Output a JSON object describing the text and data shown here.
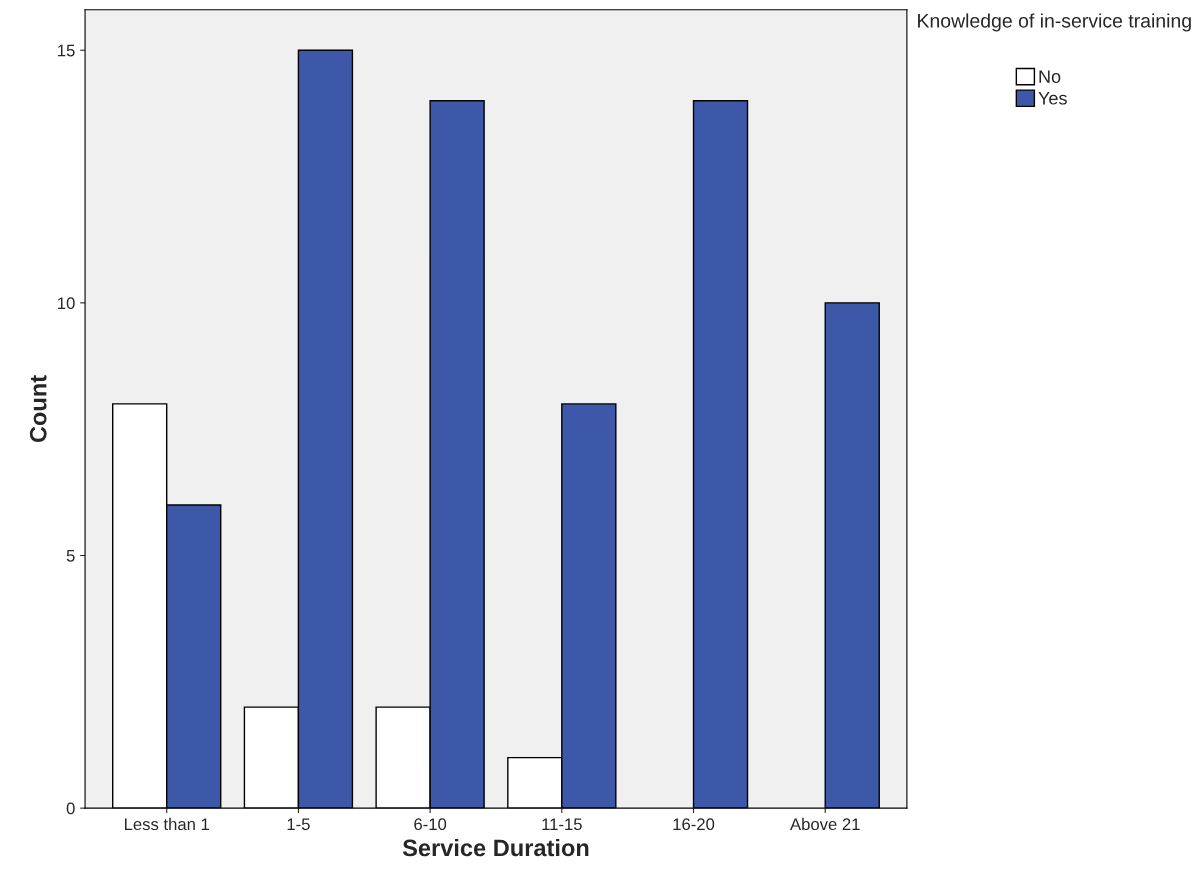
{
  "chart_data": {
    "type": "bar",
    "xlabel": "Service Duration",
    "ylabel": "Count",
    "legend_title": "Knowledge of in-service training",
    "categories": [
      "Less than 1",
      "1-5",
      "6-10",
      "11-15",
      "16-20",
      "Above 21"
    ],
    "series": [
      {
        "name": "No",
        "color": "#ffffff",
        "values": [
          8,
          2,
          2,
          1,
          null,
          null
        ]
      },
      {
        "name": "Yes",
        "color": "#3d58a8",
        "values": [
          6,
          15,
          14,
          8,
          14,
          10
        ]
      }
    ],
    "ylim": [
      0,
      15.8
    ],
    "yticks": [
      0,
      5,
      10,
      15
    ],
    "grid": false,
    "legend": "top right"
  }
}
